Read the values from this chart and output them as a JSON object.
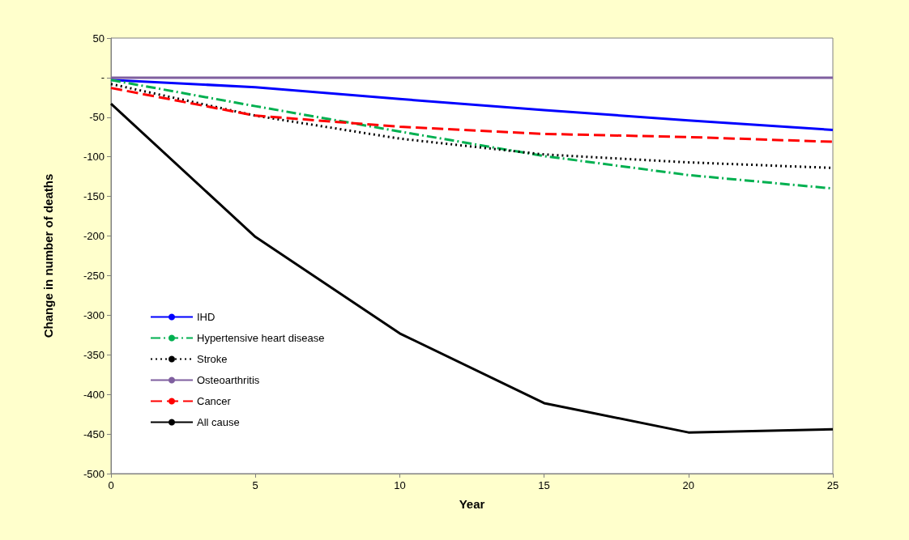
{
  "chart_data": {
    "type": "line",
    "xlabel": "Year",
    "ylabel": "Change in number of deaths",
    "x": [
      0,
      5,
      10,
      15,
      20,
      25
    ],
    "xlim": [
      0,
      25
    ],
    "xticks": [
      0,
      5,
      10,
      15,
      20,
      25
    ],
    "ylim": [
      -500,
      50
    ],
    "yticks": [
      -500,
      -450,
      -400,
      -350,
      -300,
      -250,
      -200,
      -150,
      -100,
      -50,
      {
        "value": 0,
        "label": "-"
      },
      50
    ],
    "grid": false,
    "legend": "bottom left",
    "marker": "none",
    "series": [
      {
        "name": "IHD",
        "color": "#0000ff",
        "line_style": "solid",
        "values": [
          -3,
          -12,
          -27,
          -41,
          -54,
          -66
        ]
      },
      {
        "name": "Hypertensive heart disease",
        "color": "#00b050",
        "line_style": "dashdot",
        "values": [
          -3,
          -36,
          -68,
          -99,
          -123,
          -140
        ]
      },
      {
        "name": "Stroke",
        "color": "#000000",
        "line_style": "dotted",
        "values": [
          -8,
          -48,
          -77,
          -97,
          -107,
          -114
        ]
      },
      {
        "name": "Osteoarthritis",
        "color": "#7f5f9f",
        "line_style": "solid",
        "values": [
          0,
          0,
          0,
          0,
          0,
          0
        ]
      },
      {
        "name": "Cancer",
        "color": "#ff0000",
        "line_style": "dashed",
        "values": [
          -13,
          -48,
          -62,
          -71,
          -75,
          -81
        ]
      },
      {
        "name": "All cause",
        "color": "#000000",
        "line_style": "solid",
        "values": [
          -33,
          -201,
          -323,
          -411,
          -448,
          -444
        ]
      }
    ]
  }
}
